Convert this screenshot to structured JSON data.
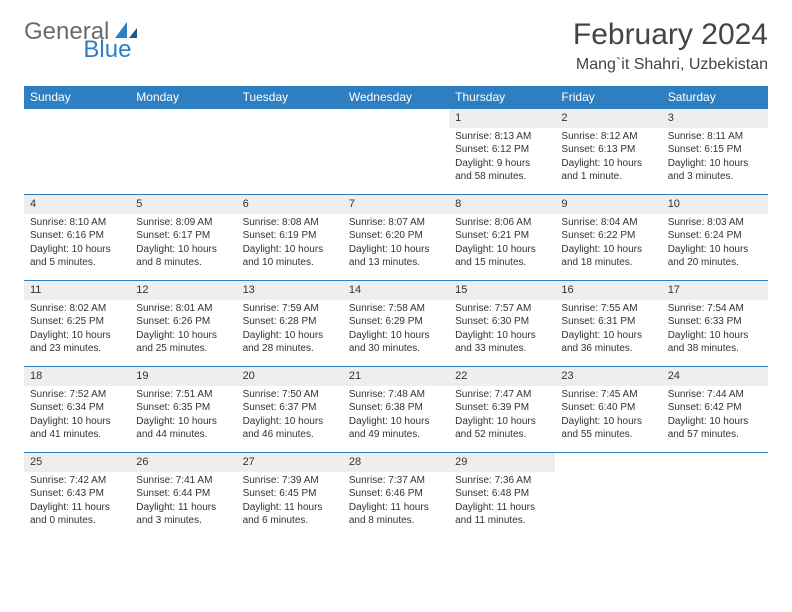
{
  "brand": {
    "part1": "General",
    "part2": "Blue"
  },
  "title": "February 2024",
  "location": "Mang`it Shahri, Uzbekistan",
  "colors": {
    "header_bg": "#2d7fc1",
    "header_text": "#ffffff",
    "daynum_bg": "#eeeeee",
    "border": "#2d7fc1",
    "body_text": "#333333",
    "title_text": "#444444",
    "logo_gray": "#6a6a6a",
    "logo_blue": "#2d7fc1"
  },
  "typography": {
    "title_fontsize": 30,
    "location_fontsize": 16,
    "dayheader_fontsize": 12,
    "daynum_fontsize": 11,
    "cell_fontsize": 10
  },
  "day_headers": [
    "Sunday",
    "Monday",
    "Tuesday",
    "Wednesday",
    "Thursday",
    "Friday",
    "Saturday"
  ],
  "weeks": [
    [
      {
        "empty": true
      },
      {
        "empty": true
      },
      {
        "empty": true
      },
      {
        "empty": true
      },
      {
        "day": "1",
        "sunrise": "Sunrise: 8:13 AM",
        "sunset": "Sunset: 6:12 PM",
        "daylight": "Daylight: 9 hours and 58 minutes."
      },
      {
        "day": "2",
        "sunrise": "Sunrise: 8:12 AM",
        "sunset": "Sunset: 6:13 PM",
        "daylight": "Daylight: 10 hours and 1 minute."
      },
      {
        "day": "3",
        "sunrise": "Sunrise: 8:11 AM",
        "sunset": "Sunset: 6:15 PM",
        "daylight": "Daylight: 10 hours and 3 minutes."
      }
    ],
    [
      {
        "day": "4",
        "sunrise": "Sunrise: 8:10 AM",
        "sunset": "Sunset: 6:16 PM",
        "daylight": "Daylight: 10 hours and 5 minutes."
      },
      {
        "day": "5",
        "sunrise": "Sunrise: 8:09 AM",
        "sunset": "Sunset: 6:17 PM",
        "daylight": "Daylight: 10 hours and 8 minutes."
      },
      {
        "day": "6",
        "sunrise": "Sunrise: 8:08 AM",
        "sunset": "Sunset: 6:19 PM",
        "daylight": "Daylight: 10 hours and 10 minutes."
      },
      {
        "day": "7",
        "sunrise": "Sunrise: 8:07 AM",
        "sunset": "Sunset: 6:20 PM",
        "daylight": "Daylight: 10 hours and 13 minutes."
      },
      {
        "day": "8",
        "sunrise": "Sunrise: 8:06 AM",
        "sunset": "Sunset: 6:21 PM",
        "daylight": "Daylight: 10 hours and 15 minutes."
      },
      {
        "day": "9",
        "sunrise": "Sunrise: 8:04 AM",
        "sunset": "Sunset: 6:22 PM",
        "daylight": "Daylight: 10 hours and 18 minutes."
      },
      {
        "day": "10",
        "sunrise": "Sunrise: 8:03 AM",
        "sunset": "Sunset: 6:24 PM",
        "daylight": "Daylight: 10 hours and 20 minutes."
      }
    ],
    [
      {
        "day": "11",
        "sunrise": "Sunrise: 8:02 AM",
        "sunset": "Sunset: 6:25 PM",
        "daylight": "Daylight: 10 hours and 23 minutes."
      },
      {
        "day": "12",
        "sunrise": "Sunrise: 8:01 AM",
        "sunset": "Sunset: 6:26 PM",
        "daylight": "Daylight: 10 hours and 25 minutes."
      },
      {
        "day": "13",
        "sunrise": "Sunrise: 7:59 AM",
        "sunset": "Sunset: 6:28 PM",
        "daylight": "Daylight: 10 hours and 28 minutes."
      },
      {
        "day": "14",
        "sunrise": "Sunrise: 7:58 AM",
        "sunset": "Sunset: 6:29 PM",
        "daylight": "Daylight: 10 hours and 30 minutes."
      },
      {
        "day": "15",
        "sunrise": "Sunrise: 7:57 AM",
        "sunset": "Sunset: 6:30 PM",
        "daylight": "Daylight: 10 hours and 33 minutes."
      },
      {
        "day": "16",
        "sunrise": "Sunrise: 7:55 AM",
        "sunset": "Sunset: 6:31 PM",
        "daylight": "Daylight: 10 hours and 36 minutes."
      },
      {
        "day": "17",
        "sunrise": "Sunrise: 7:54 AM",
        "sunset": "Sunset: 6:33 PM",
        "daylight": "Daylight: 10 hours and 38 minutes."
      }
    ],
    [
      {
        "day": "18",
        "sunrise": "Sunrise: 7:52 AM",
        "sunset": "Sunset: 6:34 PM",
        "daylight": "Daylight: 10 hours and 41 minutes."
      },
      {
        "day": "19",
        "sunrise": "Sunrise: 7:51 AM",
        "sunset": "Sunset: 6:35 PM",
        "daylight": "Daylight: 10 hours and 44 minutes."
      },
      {
        "day": "20",
        "sunrise": "Sunrise: 7:50 AM",
        "sunset": "Sunset: 6:37 PM",
        "daylight": "Daylight: 10 hours and 46 minutes."
      },
      {
        "day": "21",
        "sunrise": "Sunrise: 7:48 AM",
        "sunset": "Sunset: 6:38 PM",
        "daylight": "Daylight: 10 hours and 49 minutes."
      },
      {
        "day": "22",
        "sunrise": "Sunrise: 7:47 AM",
        "sunset": "Sunset: 6:39 PM",
        "daylight": "Daylight: 10 hours and 52 minutes."
      },
      {
        "day": "23",
        "sunrise": "Sunrise: 7:45 AM",
        "sunset": "Sunset: 6:40 PM",
        "daylight": "Daylight: 10 hours and 55 minutes."
      },
      {
        "day": "24",
        "sunrise": "Sunrise: 7:44 AM",
        "sunset": "Sunset: 6:42 PM",
        "daylight": "Daylight: 10 hours and 57 minutes."
      }
    ],
    [
      {
        "day": "25",
        "sunrise": "Sunrise: 7:42 AM",
        "sunset": "Sunset: 6:43 PM",
        "daylight": "Daylight: 11 hours and 0 minutes."
      },
      {
        "day": "26",
        "sunrise": "Sunrise: 7:41 AM",
        "sunset": "Sunset: 6:44 PM",
        "daylight": "Daylight: 11 hours and 3 minutes."
      },
      {
        "day": "27",
        "sunrise": "Sunrise: 7:39 AM",
        "sunset": "Sunset: 6:45 PM",
        "daylight": "Daylight: 11 hours and 6 minutes."
      },
      {
        "day": "28",
        "sunrise": "Sunrise: 7:37 AM",
        "sunset": "Sunset: 6:46 PM",
        "daylight": "Daylight: 11 hours and 8 minutes."
      },
      {
        "day": "29",
        "sunrise": "Sunrise: 7:36 AM",
        "sunset": "Sunset: 6:48 PM",
        "daylight": "Daylight: 11 hours and 11 minutes."
      },
      {
        "empty": true
      },
      {
        "empty": true
      }
    ]
  ]
}
